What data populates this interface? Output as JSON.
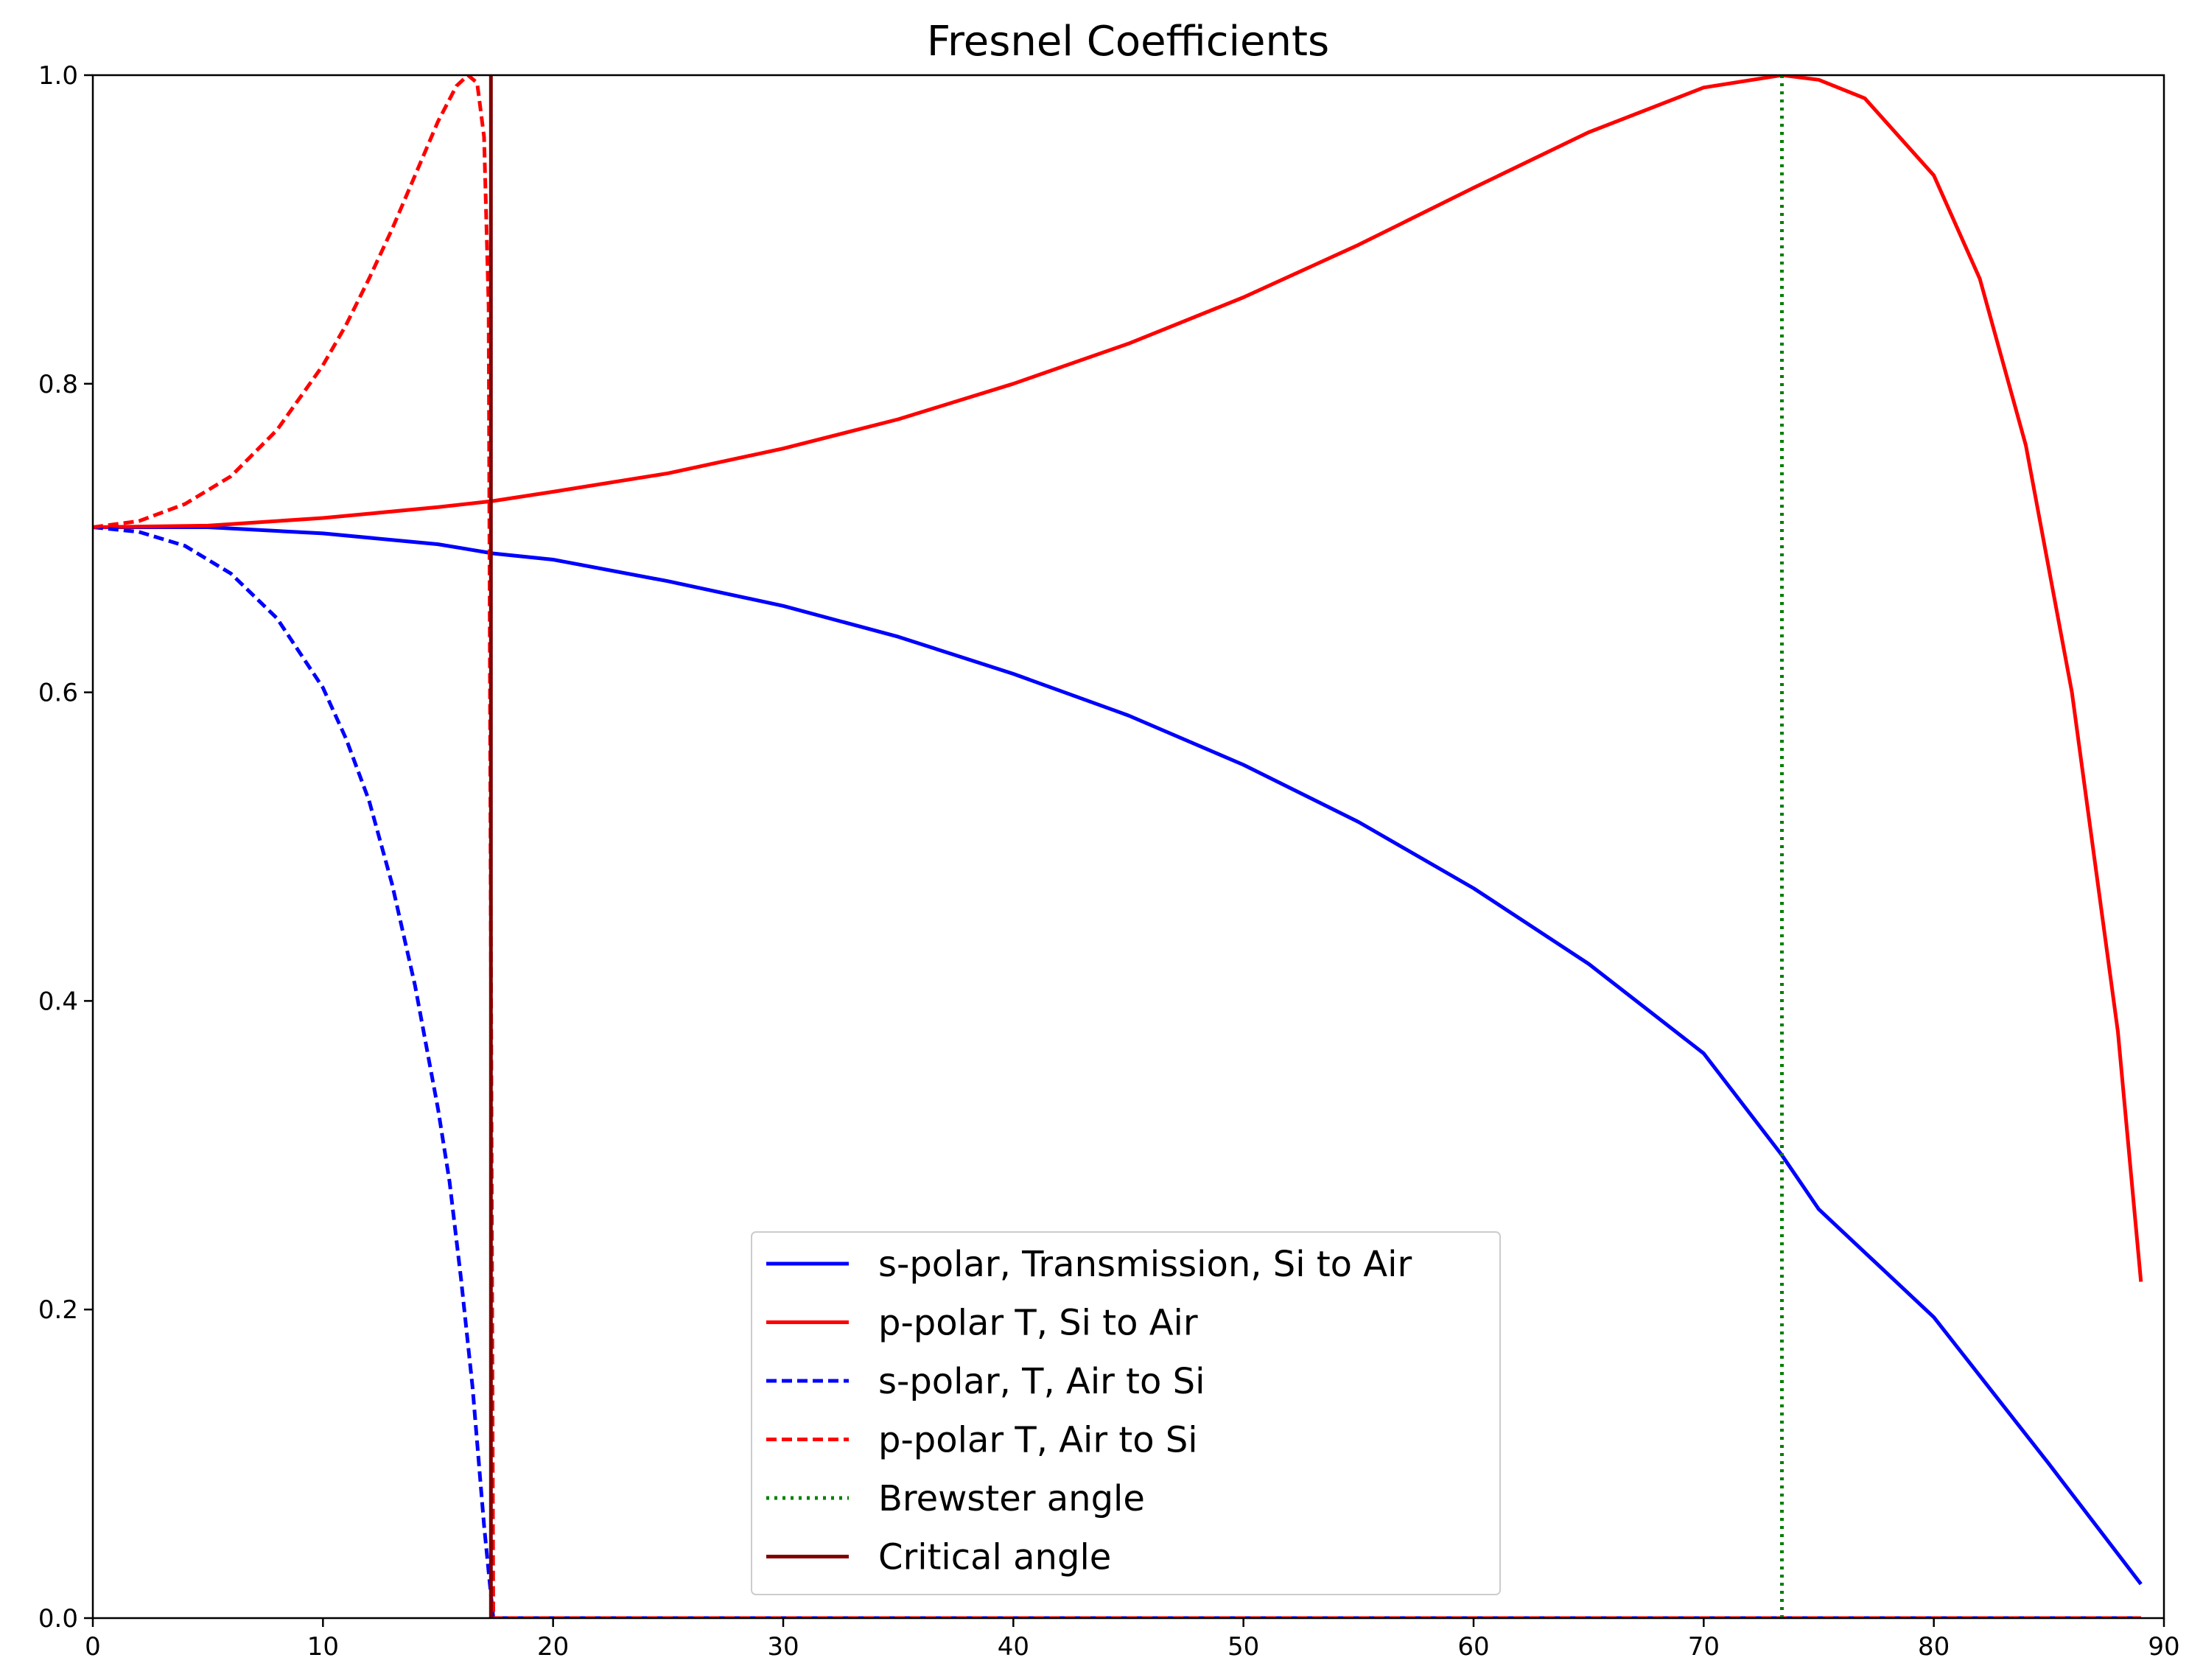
{
  "chart_data": {
    "type": "line",
    "title": "Fresnel Coefficients",
    "xlabel": "",
    "ylabel": "",
    "xlim": [
      0,
      90
    ],
    "ylim": [
      0.0,
      1.0
    ],
    "xticks": [
      "0",
      "10",
      "20",
      "30",
      "40",
      "50",
      "60",
      "70",
      "80",
      "90"
    ],
    "yticks": [
      "0.0",
      "0.2",
      "0.4",
      "0.6",
      "0.8",
      "1.0"
    ],
    "grid": false,
    "legend_position": "lower-center",
    "series": [
      {
        "name": "s-polar, Transmission, Si to Air",
        "color": "#0000ff",
        "style": "solid",
        "x": [
          0,
          5,
          10,
          15,
          17.4,
          20,
          25,
          30,
          35,
          40,
          45,
          50,
          55,
          60,
          65,
          70,
          73.4,
          75,
          80,
          85,
          89
        ],
        "y": [
          0.707,
          0.707,
          0.703,
          0.696,
          0.69,
          0.686,
          0.672,
          0.656,
          0.636,
          0.612,
          0.585,
          0.553,
          0.516,
          0.473,
          0.424,
          0.366,
          0.3,
          0.265,
          0.195,
          0.1,
          0.022
        ]
      },
      {
        "name": "p-polar T, Si to Air",
        "color": "#ff0000",
        "style": "solid",
        "x": [
          0,
          5,
          10,
          15,
          17.4,
          20,
          25,
          30,
          35,
          40,
          45,
          50,
          55,
          60,
          65,
          70,
          73.4,
          75,
          77,
          80,
          82,
          84,
          86,
          88,
          89
        ],
        "y": [
          0.707,
          0.708,
          0.713,
          0.72,
          0.724,
          0.73,
          0.742,
          0.758,
          0.777,
          0.8,
          0.826,
          0.856,
          0.89,
          0.927,
          0.963,
          0.992,
          1.0,
          0.997,
          0.985,
          0.935,
          0.868,
          0.76,
          0.6,
          0.38,
          0.218
        ]
      },
      {
        "name": "s-polar, T, Air to Si",
        "color": "#0000ff",
        "style": "dashed",
        "x": [
          0,
          2,
          4,
          6,
          8,
          10,
          11,
          12,
          13,
          14,
          15,
          15.5,
          16,
          16.5,
          17,
          17.2,
          17.4,
          17.6,
          18,
          20,
          30,
          40,
          50,
          60,
          70,
          80,
          89
        ],
        "y": [
          0.707,
          0.704,
          0.695,
          0.677,
          0.648,
          0.603,
          0.57,
          0.53,
          0.476,
          0.41,
          0.33,
          0.283,
          0.22,
          0.15,
          0.06,
          0.03,
          0.0,
          0.0,
          0.0,
          0.0,
          0.0,
          0.0,
          0.0,
          0.0,
          0.0,
          0.0,
          0.0
        ]
      },
      {
        "name": "p-polar T, Air to Si",
        "color": "#ff0000",
        "style": "dashed",
        "x": [
          0,
          2,
          4,
          6,
          8,
          10,
          11,
          12,
          13,
          14,
          15,
          15.8,
          16.3,
          16.7,
          17.0,
          17.2,
          17.4,
          17.6,
          18,
          20,
          30,
          40,
          50,
          60,
          70,
          80,
          89
        ],
        "y": [
          0.707,
          0.711,
          0.722,
          0.74,
          0.77,
          0.812,
          0.838,
          0.868,
          0.9,
          0.935,
          0.97,
          0.993,
          1.0,
          0.995,
          0.96,
          0.85,
          0.0,
          0.0,
          0.0,
          0.0,
          0.0,
          0.0,
          0.0,
          0.0,
          0.0,
          0.0,
          0.0
        ]
      },
      {
        "name": "Brewster angle",
        "color": "#008000",
        "style": "dotted",
        "x": [
          73.4,
          73.4
        ],
        "y": [
          0.0,
          1.0
        ]
      },
      {
        "name": "Critical angle",
        "color": "#800000",
        "style": "solid",
        "x": [
          17.3,
          17.3
        ],
        "y": [
          0.0,
          1.0
        ]
      }
    ]
  }
}
